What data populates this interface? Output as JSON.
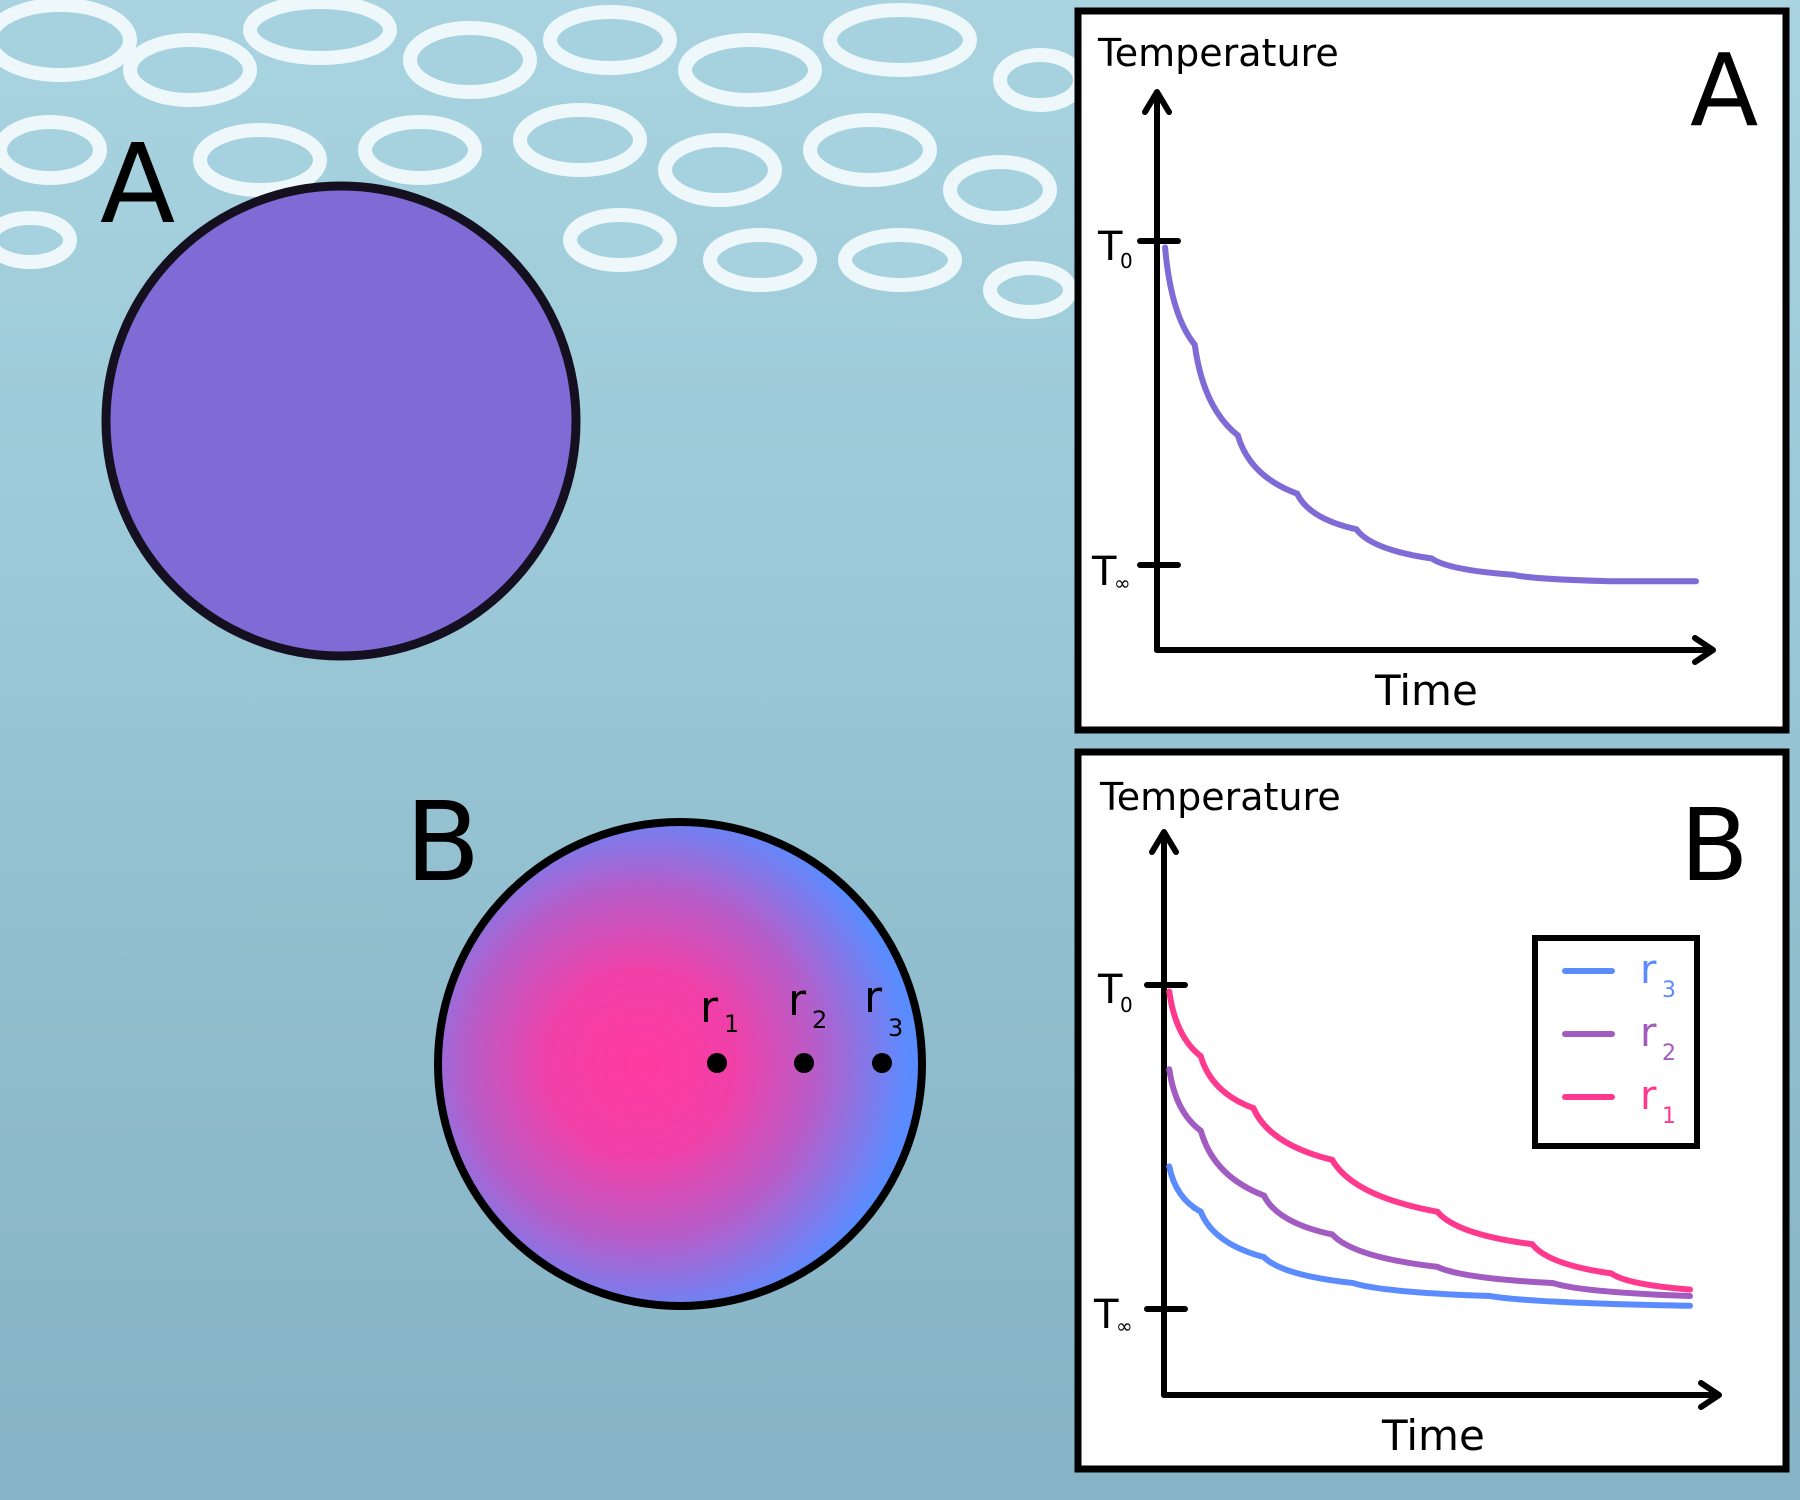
{
  "scene": {
    "label_a": "A",
    "label_b": "B",
    "sphere_a_color": "#7f6bd6",
    "sphere_b_center_color": "#ff3aa0",
    "sphere_b_edge_color": "#5b8cff",
    "points": [
      "r1",
      "r2",
      "r3"
    ],
    "point_labels": [
      {
        "main": "r",
        "sub": "1"
      },
      {
        "main": "r",
        "sub": "2"
      },
      {
        "main": "r",
        "sub": "3"
      }
    ]
  },
  "chart_data": [
    {
      "type": "line",
      "panel_label": "A",
      "ylabel": "Temperature",
      "xlabel": "Time",
      "yticks": [
        {
          "main": "T",
          "sub": "0",
          "value": 1
        },
        {
          "main": "T",
          "sub": "∞",
          "value": 0
        }
      ],
      "series": [
        {
          "name": "sphere",
          "color": "#7f6bd6",
          "x": [
            0.015,
            0.07,
            0.15,
            0.26,
            0.37,
            0.51,
            0.66,
            0.84,
            1.0
          ],
          "y": [
            0.98,
            0.68,
            0.4,
            0.22,
            0.11,
            0.02,
            -0.03,
            -0.05,
            -0.05
          ]
        }
      ]
    },
    {
      "type": "line",
      "panel_label": "B",
      "ylabel": "Temperature",
      "xlabel": "Time",
      "yticks": [
        {
          "main": "T",
          "sub": "0",
          "value": 1
        },
        {
          "main": "T",
          "sub": "∞",
          "value": 0
        }
      ],
      "legend": "top-right",
      "series": [
        {
          "name": "r3",
          "label_main": "r",
          "label_sub": "3",
          "color": "#5b8cff",
          "x": [
            0.01,
            0.07,
            0.19,
            0.36,
            0.62,
            1.0
          ],
          "y": [
            0.44,
            0.3,
            0.16,
            0.08,
            0.04,
            0.01
          ]
        },
        {
          "name": "r2",
          "label_main": "r",
          "label_sub": "2",
          "color": "#a25bc0",
          "x": [
            0.01,
            0.07,
            0.19,
            0.32,
            0.52,
            0.74,
            1.0
          ],
          "y": [
            0.74,
            0.55,
            0.35,
            0.23,
            0.13,
            0.08,
            0.04
          ]
        },
        {
          "name": "r1",
          "label_main": "r",
          "label_sub": "1",
          "color": "#ff3a8e",
          "x": [
            0.01,
            0.07,
            0.17,
            0.32,
            0.52,
            0.7,
            0.85,
            1.0
          ],
          "y": [
            0.98,
            0.78,
            0.62,
            0.46,
            0.3,
            0.2,
            0.11,
            0.06
          ]
        }
      ]
    }
  ]
}
